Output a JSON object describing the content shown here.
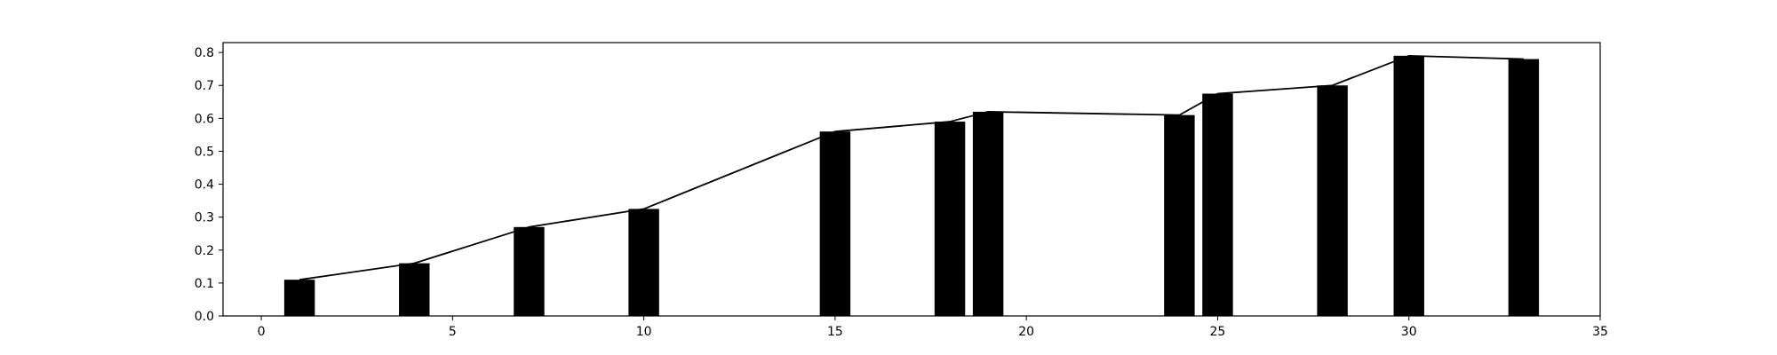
{
  "chart_data": {
    "type": "bar",
    "title": "",
    "xlabel": "",
    "ylabel": "",
    "xlim": [
      -1,
      35
    ],
    "ylim": [
      0,
      0.83
    ],
    "grid": false,
    "colors": {
      "bar": "#000000",
      "line": "#000000",
      "axis": "#000000",
      "background": "#ffffff"
    },
    "x_ticks": [
      0,
      5,
      10,
      15,
      20,
      25,
      30,
      35
    ],
    "y_ticks": [
      0.0,
      0.1,
      0.2,
      0.3,
      0.4,
      0.5,
      0.6,
      0.7,
      0.8
    ],
    "x_tick_labels": [
      "0",
      "5",
      "10",
      "15",
      "20",
      "25",
      "30",
      "35"
    ],
    "y_tick_labels": [
      "0.0",
      "0.1",
      "0.2",
      "0.3",
      "0.4",
      "0.5",
      "0.6",
      "0.7",
      "0.8"
    ],
    "bar_width": 0.8,
    "bars": [
      {
        "x": 1,
        "value": 0.11
      },
      {
        "x": 4,
        "value": 0.16
      },
      {
        "x": 7,
        "value": 0.27
      },
      {
        "x": 10,
        "value": 0.325
      },
      {
        "x": 15,
        "value": 0.56
      },
      {
        "x": 18,
        "value": 0.59
      },
      {
        "x": 19,
        "value": 0.62
      },
      {
        "x": 24,
        "value": 0.61
      },
      {
        "x": 25,
        "value": 0.675
      },
      {
        "x": 28,
        "value": 0.7
      },
      {
        "x": 30,
        "value": 0.79
      },
      {
        "x": 33,
        "value": 0.78
      }
    ],
    "line": {
      "x": [
        1,
        4,
        7,
        10,
        15,
        18,
        19,
        24,
        25,
        28,
        30,
        33
      ],
      "y": [
        0.11,
        0.16,
        0.27,
        0.325,
        0.56,
        0.59,
        0.62,
        0.61,
        0.675,
        0.7,
        0.79,
        0.78
      ]
    }
  }
}
